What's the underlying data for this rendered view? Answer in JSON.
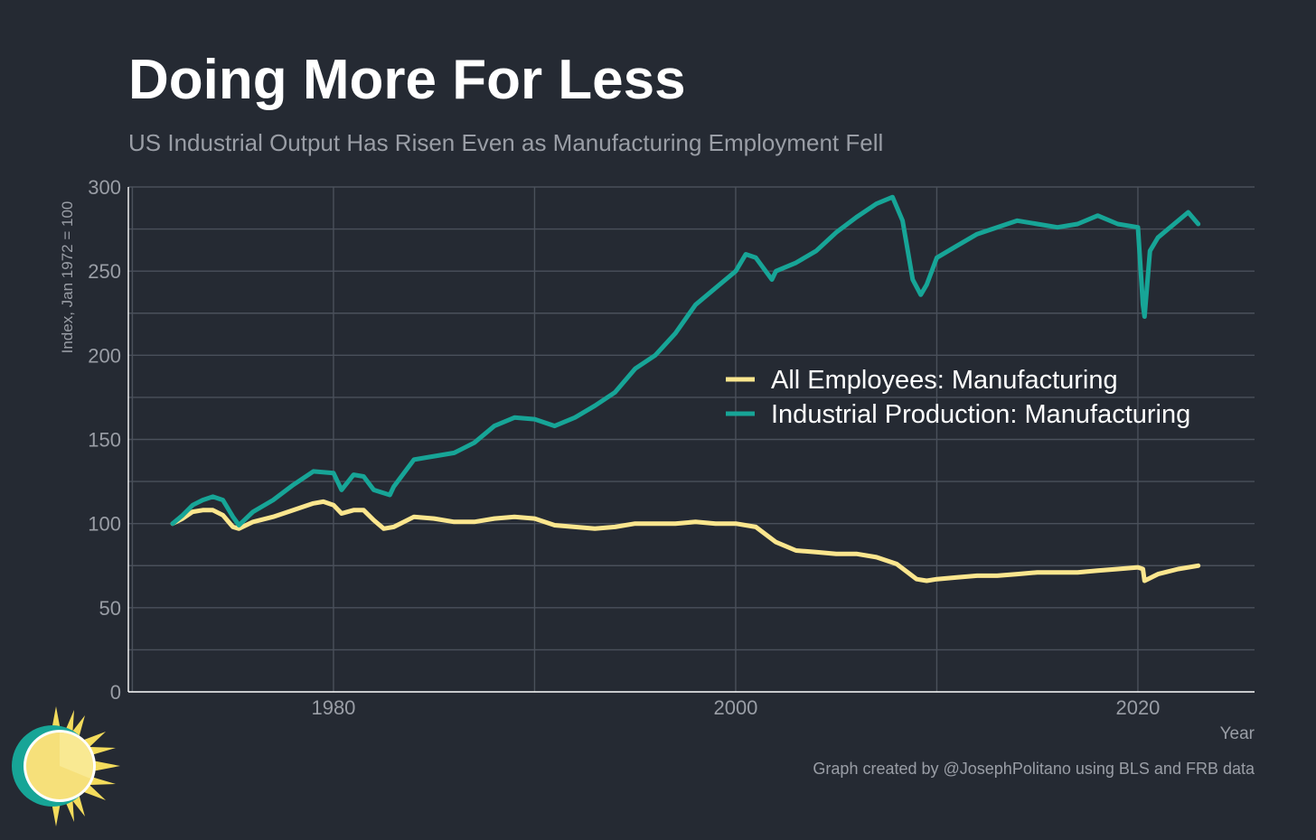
{
  "header": {
    "title": "Doing More For Less",
    "subtitle": "US Industrial Output Has Risen Even as Manufacturing Employment Fell"
  },
  "footer": {
    "credit": "Graph created by @JosephPolitano using BLS and FRB data"
  },
  "logo": {
    "icon": "sun-logo-icon"
  },
  "colors": {
    "background": "#252a33",
    "grid": "#4a505b",
    "employment": "#fbe68e",
    "production": "#17a597",
    "tick_text": "#9a9ea6",
    "legend_text": "#ffffff"
  },
  "chart_data": {
    "type": "line",
    "title": "Doing More For Less",
    "subtitle": "US Industrial Output Has Risen Even as Manufacturing Employment Fell",
    "xlabel": "Year",
    "ylabel": "Index, Jan 1972 = 100",
    "xlim": [
      1969.8,
      2025.8
    ],
    "ylim": [
      0,
      300
    ],
    "xticks": [
      1980,
      2000,
      2020
    ],
    "yticks": [
      0,
      50,
      100,
      150,
      200,
      250,
      300
    ],
    "grid": true,
    "legend_position": "center-right",
    "series": [
      {
        "name": "All Employees: Manufacturing",
        "color": "#fbe68e",
        "x": [
          1972,
          1972.5,
          1973,
          1973.5,
          1974,
          1974.5,
          1975,
          1975.3,
          1976,
          1977,
          1978,
          1979,
          1979.5,
          1980,
          1980.4,
          1981,
          1981.5,
          1982,
          1982.5,
          1983,
          1984,
          1985,
          1986,
          1987,
          1988,
          1989,
          1990,
          1991,
          1992,
          1993,
          1994,
          1995,
          1996,
          1997,
          1998,
          1999,
          2000,
          2001,
          2002,
          2003,
          2004,
          2005,
          2006,
          2007,
          2008,
          2009,
          2009.5,
          2010,
          2011,
          2012,
          2013,
          2014,
          2015,
          2016,
          2017,
          2018,
          2019,
          2020,
          2020.25,
          2020.33,
          2021,
          2022,
          2023
        ],
        "y": [
          100,
          103,
          107,
          108,
          108,
          105,
          98,
          97,
          101,
          104,
          108,
          112,
          113,
          111,
          106,
          108,
          108,
          102,
          97,
          98,
          104,
          103,
          101,
          101,
          103,
          104,
          103,
          99,
          98,
          97,
          98,
          100,
          100,
          100,
          101,
          100,
          100,
          98,
          89,
          84,
          83,
          82,
          82,
          80,
          76,
          67,
          66,
          67,
          68,
          69,
          69,
          70,
          71,
          71,
          71,
          72,
          73,
          74,
          73,
          66,
          70,
          73,
          75
        ]
      },
      {
        "name": "Industrial Production: Manufacturing",
        "color": "#17a597",
        "x": [
          1972,
          1972.5,
          1973,
          1973.5,
          1974,
          1974.5,
          1975,
          1975.3,
          1976,
          1977,
          1978,
          1979,
          1980,
          1980.4,
          1981,
          1981.5,
          1982,
          1982.8,
          1983,
          1984,
          1985,
          1986,
          1987,
          1988,
          1989,
          1990,
          1991,
          1992,
          1993,
          1994,
          1995,
          1996,
          1997,
          1998,
          1999,
          2000,
          2000.5,
          2001,
          2001.8,
          2002,
          2003,
          2004,
          2005,
          2006,
          2007,
          2007.8,
          2008.3,
          2008.8,
          2009.2,
          2009.5,
          2010,
          2011,
          2012,
          2013,
          2014,
          2015,
          2016,
          2017,
          2018,
          2019,
          2020,
          2020.25,
          2020.33,
          2020.6,
          2021,
          2022,
          2022.5,
          2023
        ],
        "y": [
          100,
          105,
          111,
          114,
          116,
          114,
          104,
          99,
          107,
          114,
          123,
          131,
          130,
          120,
          129,
          128,
          120,
          117,
          122,
          138,
          140,
          142,
          148,
          158,
          163,
          162,
          158,
          163,
          170,
          178,
          192,
          200,
          213,
          230,
          240,
          250,
          260,
          258,
          245,
          250,
          255,
          262,
          273,
          282,
          290,
          294,
          280,
          245,
          236,
          242,
          258,
          265,
          272,
          276,
          280,
          278,
          276,
          278,
          283,
          278,
          276,
          230,
          223,
          262,
          270,
          280,
          285,
          278
        ]
      }
    ]
  }
}
